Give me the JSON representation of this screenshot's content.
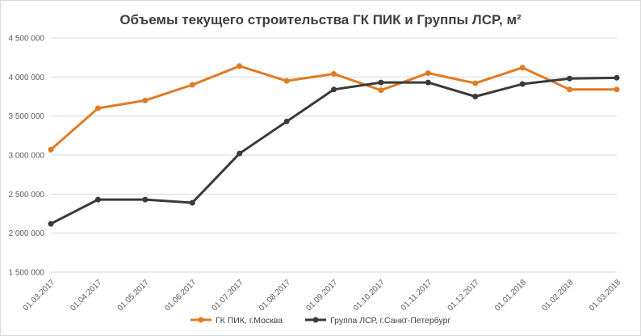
{
  "chart_data": {
    "type": "line",
    "title": "Объемы текущего строительства ГК ПИК и Группы ЛСР, м²",
    "xlabel": "",
    "ylabel": "",
    "x": [
      "01.03.2017",
      "01.04.2017",
      "01.05.2017",
      "01.06.2017",
      "01.07.2017",
      "01.08.2017",
      "01.09.2017",
      "01.10.2017",
      "01.11.2017",
      "01.12.2017",
      "01.01.2018",
      "01.02.2018",
      "01.03.2018"
    ],
    "yticks": [
      1500000,
      2000000,
      2500000,
      3000000,
      3500000,
      4000000,
      4500000
    ],
    "ytick_labels": [
      "1 500 000",
      "2 000 000",
      "2 500 000",
      "3 000 000",
      "3 500 000",
      "4 000 000",
      "4 500 000"
    ],
    "ylim": [
      1500000,
      4500000
    ],
    "grid": "horizontal",
    "legend": "bottom",
    "series": [
      {
        "name": "ГК ПИК, г.Москва",
        "color": "#e07b24",
        "values": [
          3070000,
          3600000,
          3700000,
          3900000,
          4140000,
          3950000,
          4040000,
          3830000,
          4050000,
          3920000,
          4120000,
          3840000,
          3840000
        ]
      },
      {
        "name": "Группа ЛСР, г.Санкт-Петербург",
        "color": "#3a3a3a",
        "values": [
          2120000,
          2430000,
          2430000,
          2390000,
          3020000,
          3430000,
          3840000,
          3930000,
          3930000,
          3750000,
          3910000,
          3980000,
          3990000
        ]
      }
    ]
  }
}
